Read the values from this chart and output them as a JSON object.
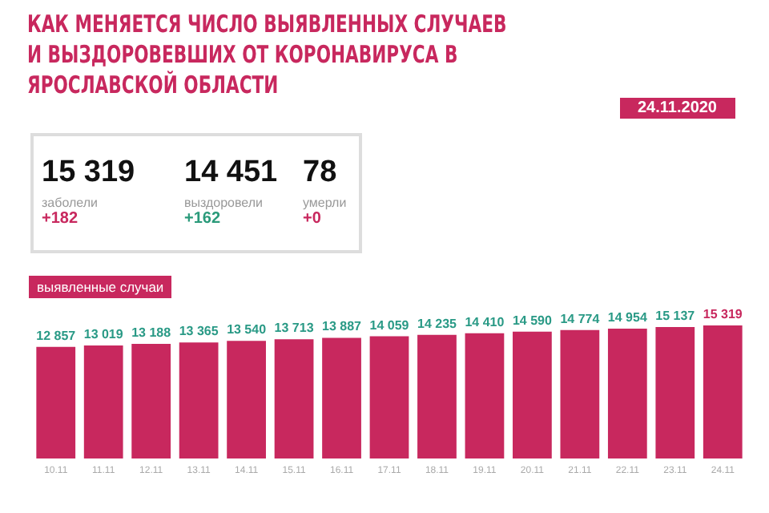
{
  "chart_data": {
    "type": "bar",
    "title": "КАК МЕНЯЕТСЯ ЧИСЛО ВЫЯВЛЕННЫХ СЛУЧАЕВ И ВЫЗДОРОВЕВШИХ ОТ КОРОНАВИРУСА В ЯРОСЛАВСКОЙ ОБЛАСТИ",
    "subtitle": "выявленные случаи",
    "annotations": [
      "24.11.2020",
      "15 319",
      "заболели",
      "+182",
      "14 451",
      "выздоровели",
      "+162",
      "78",
      "умерли",
      "+0"
    ],
    "categories": [
      "10.11",
      "11.11",
      "12.11",
      "13.11",
      "14.11",
      "15.11",
      "16.11",
      "17.11",
      "18.11",
      "19.11",
      "20.11",
      "21.11",
      "22.11",
      "23.11",
      "24.11"
    ],
    "values": [
      12857,
      13019,
      13188,
      13365,
      13540,
      13713,
      13887,
      14059,
      14235,
      14410,
      14590,
      14774,
      14954,
      15137,
      15319
    ],
    "value_labels": [
      "12 857",
      "13 019",
      "13 188",
      "13 365",
      "13 540",
      "13 713",
      "13 887",
      "14 059",
      "14 235",
      "14 410",
      "14 590",
      "14 774",
      "14 954",
      "15 137",
      "15 319"
    ],
    "color": "#c8285e"
  }
}
